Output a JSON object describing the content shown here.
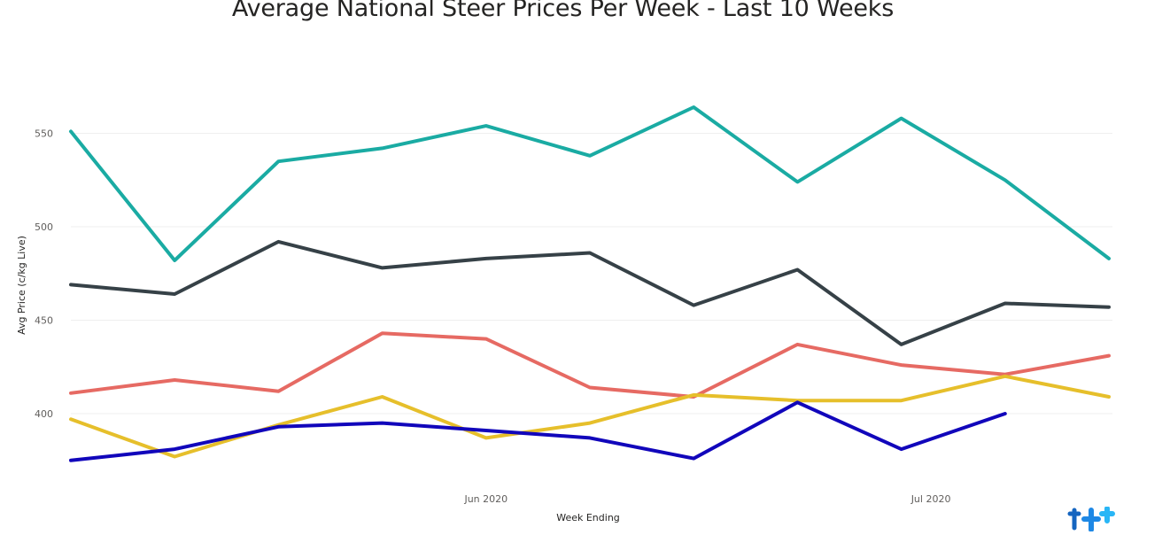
{
  "title": "Average National Steer Prices Per Week - Last 10 Weeks",
  "chart_data": {
    "type": "line",
    "title": "Average National Steer Prices Per Week - Last 10 Weeks",
    "xlabel": "Week Ending",
    "ylabel": "Avg Price (c/kg Live)",
    "x_tick_labels": [
      "Jun 2020",
      "Jul 2020"
    ],
    "y_ticks": [
      400,
      450,
      500,
      550
    ],
    "ylim": [
      356,
      575
    ],
    "grid": true,
    "legend": "none",
    "x": [
      "2020-05-04",
      "2020-05-11",
      "2020-05-18",
      "2020-05-25",
      "2020-06-01",
      "2020-06-08",
      "2020-06-15",
      "2020-06-22",
      "2020-06-29",
      "2020-07-06",
      "2020-07-13"
    ],
    "series": [
      {
        "color": "#1aaba3",
        "values": [
          551,
          482,
          535,
          542,
          554,
          538,
          564,
          524,
          558,
          525,
          483
        ]
      },
      {
        "color": "#364147",
        "values": [
          469,
          464,
          492,
          478,
          483,
          486,
          458,
          477,
          437,
          459,
          457
        ]
      },
      {
        "color": "#e66a63",
        "values": [
          411,
          418,
          412,
          443,
          440,
          414,
          409,
          437,
          426,
          421,
          431
        ]
      },
      {
        "color": "#e6bf2b",
        "values": [
          397,
          377,
          394,
          409,
          387,
          395,
          410,
          407,
          407,
          420,
          409
        ]
      },
      {
        "color": "#1106bb",
        "values": [
          375,
          381,
          393,
          395,
          391,
          387,
          376,
          406,
          381,
          400,
          null
        ]
      }
    ]
  }
}
